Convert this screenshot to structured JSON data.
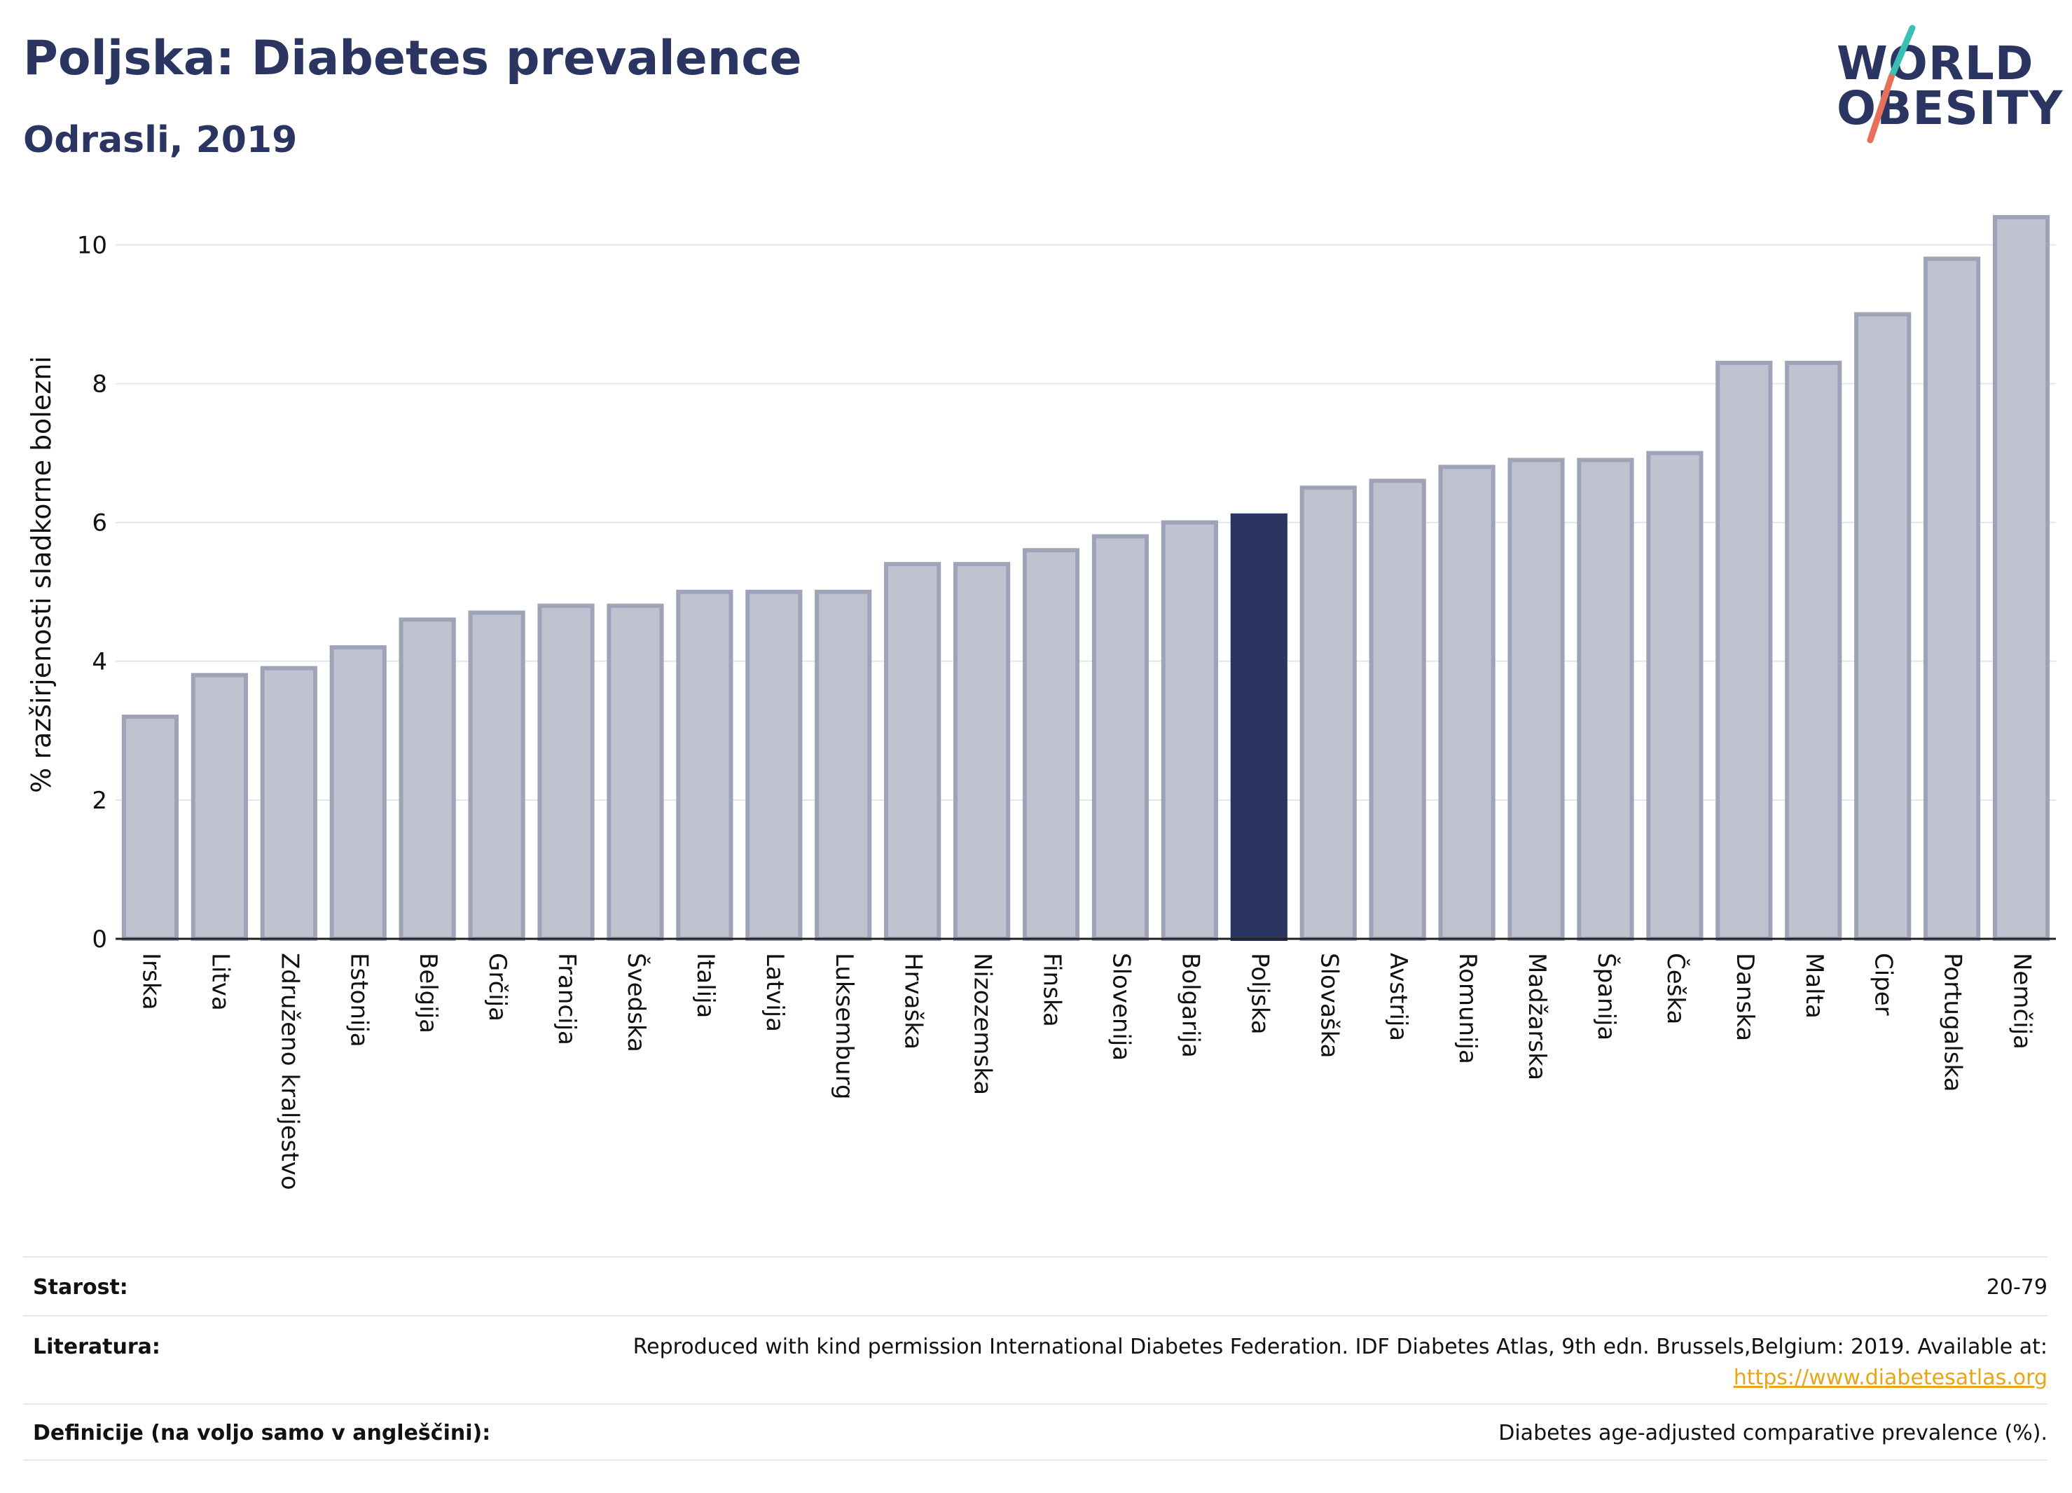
{
  "header": {
    "title": "Poljska: Diabetes prevalence",
    "subtitle": "Odrasli, 2019"
  },
  "logo": {
    "line1": "WORLD",
    "line2": "OBESITY"
  },
  "colors": {
    "highlight": "#2a3561",
    "bar_fill": "#c0c3cf",
    "bar_stroke": "#9ea3b8",
    "grid": "#e4e6ec",
    "logo_teal": "#3bbfb5",
    "logo_coral": "#e8705b",
    "link": "#e8a515"
  },
  "chart_data": {
    "type": "bar",
    "ylabel": "% razširjenosti sladkorne bolezni",
    "ylim": [
      0,
      10.5
    ],
    "yticks": [
      0,
      2,
      4,
      6,
      8,
      10
    ],
    "highlight": "Poljska",
    "categories": [
      "Irska",
      "Litva",
      "Združeno kraljestvo",
      "Estonija",
      "Belgija",
      "Grčija",
      "Francija",
      "Švedska",
      "Italija",
      "Latvija",
      "Luksemburg",
      "Hrvaška",
      "Nizozemska",
      "Finska",
      "Slovenija",
      "Bolgarija",
      "Poljska",
      "Slovaška",
      "Avstrija",
      "Romunija",
      "Madžarska",
      "Španija",
      "Češka",
      "Danska",
      "Malta",
      "Ciper",
      "Portugalska",
      "Nemčija"
    ],
    "values": [
      3.2,
      3.8,
      3.9,
      4.2,
      4.6,
      4.7,
      4.8,
      4.8,
      5.0,
      5.0,
      5.0,
      5.4,
      5.4,
      5.6,
      5.8,
      6.0,
      6.1,
      6.5,
      6.6,
      6.8,
      6.9,
      6.9,
      7.0,
      8.3,
      8.3,
      9.0,
      9.8,
      10.4
    ]
  },
  "meta": {
    "age_label": "Starost:",
    "age_value": "20-79",
    "ref_label": "Literatura:",
    "ref_line1": "Reproduced with kind permission International Diabetes Federation. IDF Diabetes Atlas, 9th edn. Brussels,Belgium: 2019. Available at:",
    "ref_link": "https://www.diabetesatlas.org",
    "def_label": "Definicije (na voljo samo v angleščini):",
    "def_value": "Diabetes age-adjusted comparative prevalence (%)."
  }
}
